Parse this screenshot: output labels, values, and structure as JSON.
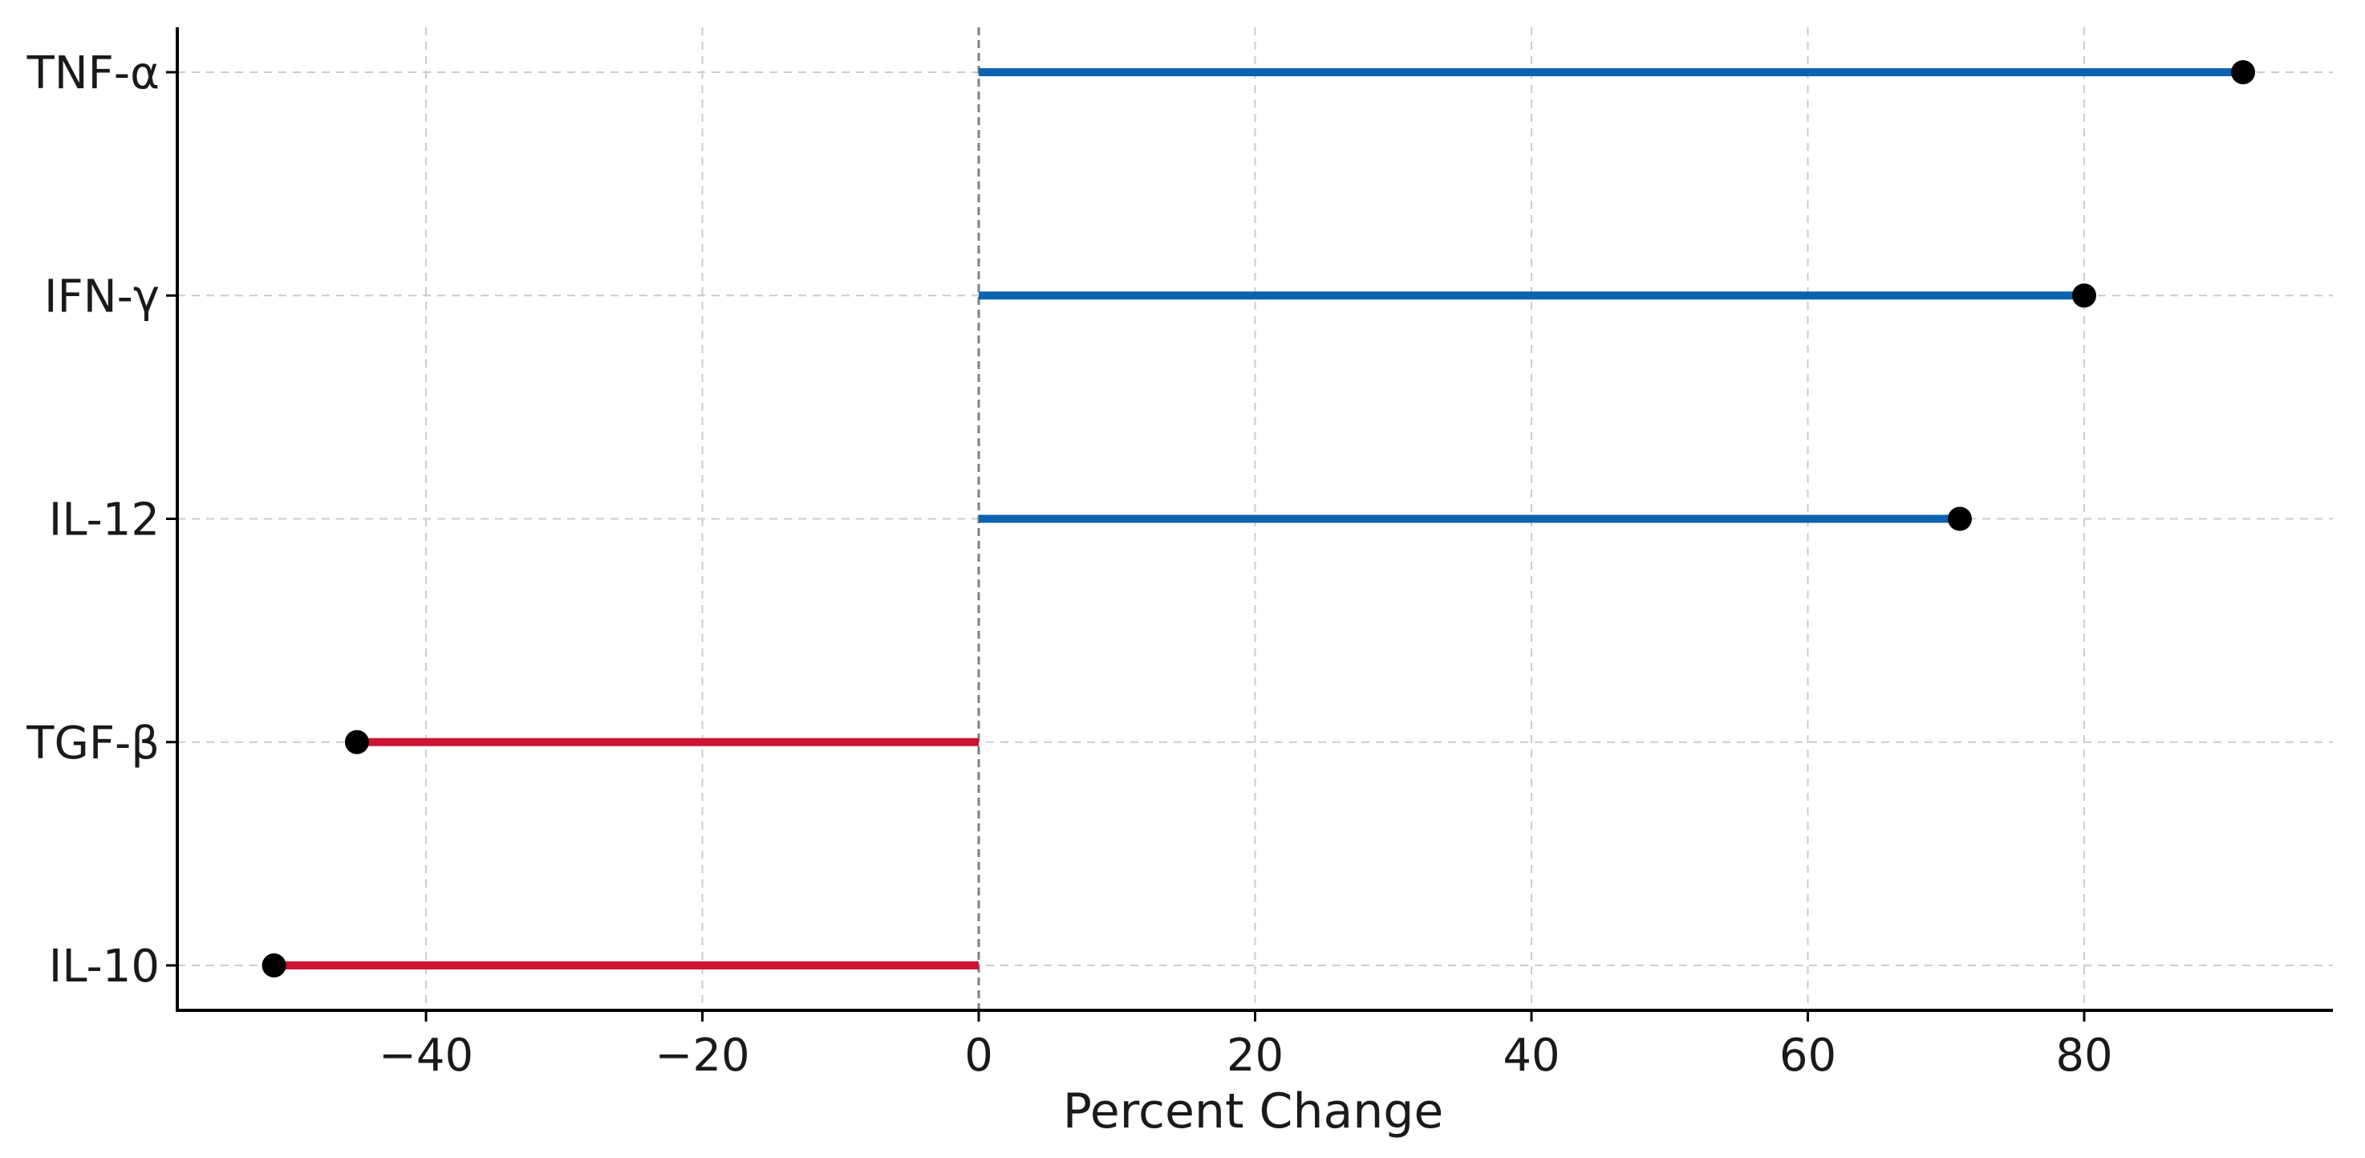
{
  "chart_data": {
    "type": "lollipop",
    "orientation": "horizontal",
    "title": "",
    "xlabel": "Percent Change",
    "ylabel": "",
    "categories": [
      "TNF-α",
      "IFN-γ",
      "IL-12",
      "TGF-β",
      "IL-10"
    ],
    "values": [
      91.5,
      80,
      71,
      -45,
      -51
    ],
    "xlim": [
      -58,
      98
    ],
    "xticks": [
      -40,
      -20,
      0,
      20,
      40,
      60,
      80
    ],
    "xtick_labels": [
      "−40",
      "−20",
      "0",
      "20",
      "40",
      "60",
      "80"
    ],
    "grid": true,
    "grid_style": "dashed",
    "zero_line": "dashed",
    "colors": {
      "positive": "#0b63b0",
      "negative": "#cc1430",
      "marker": "#000000",
      "grid": "#cccccc",
      "zero_line": "#808080",
      "axis": "#000000"
    }
  }
}
